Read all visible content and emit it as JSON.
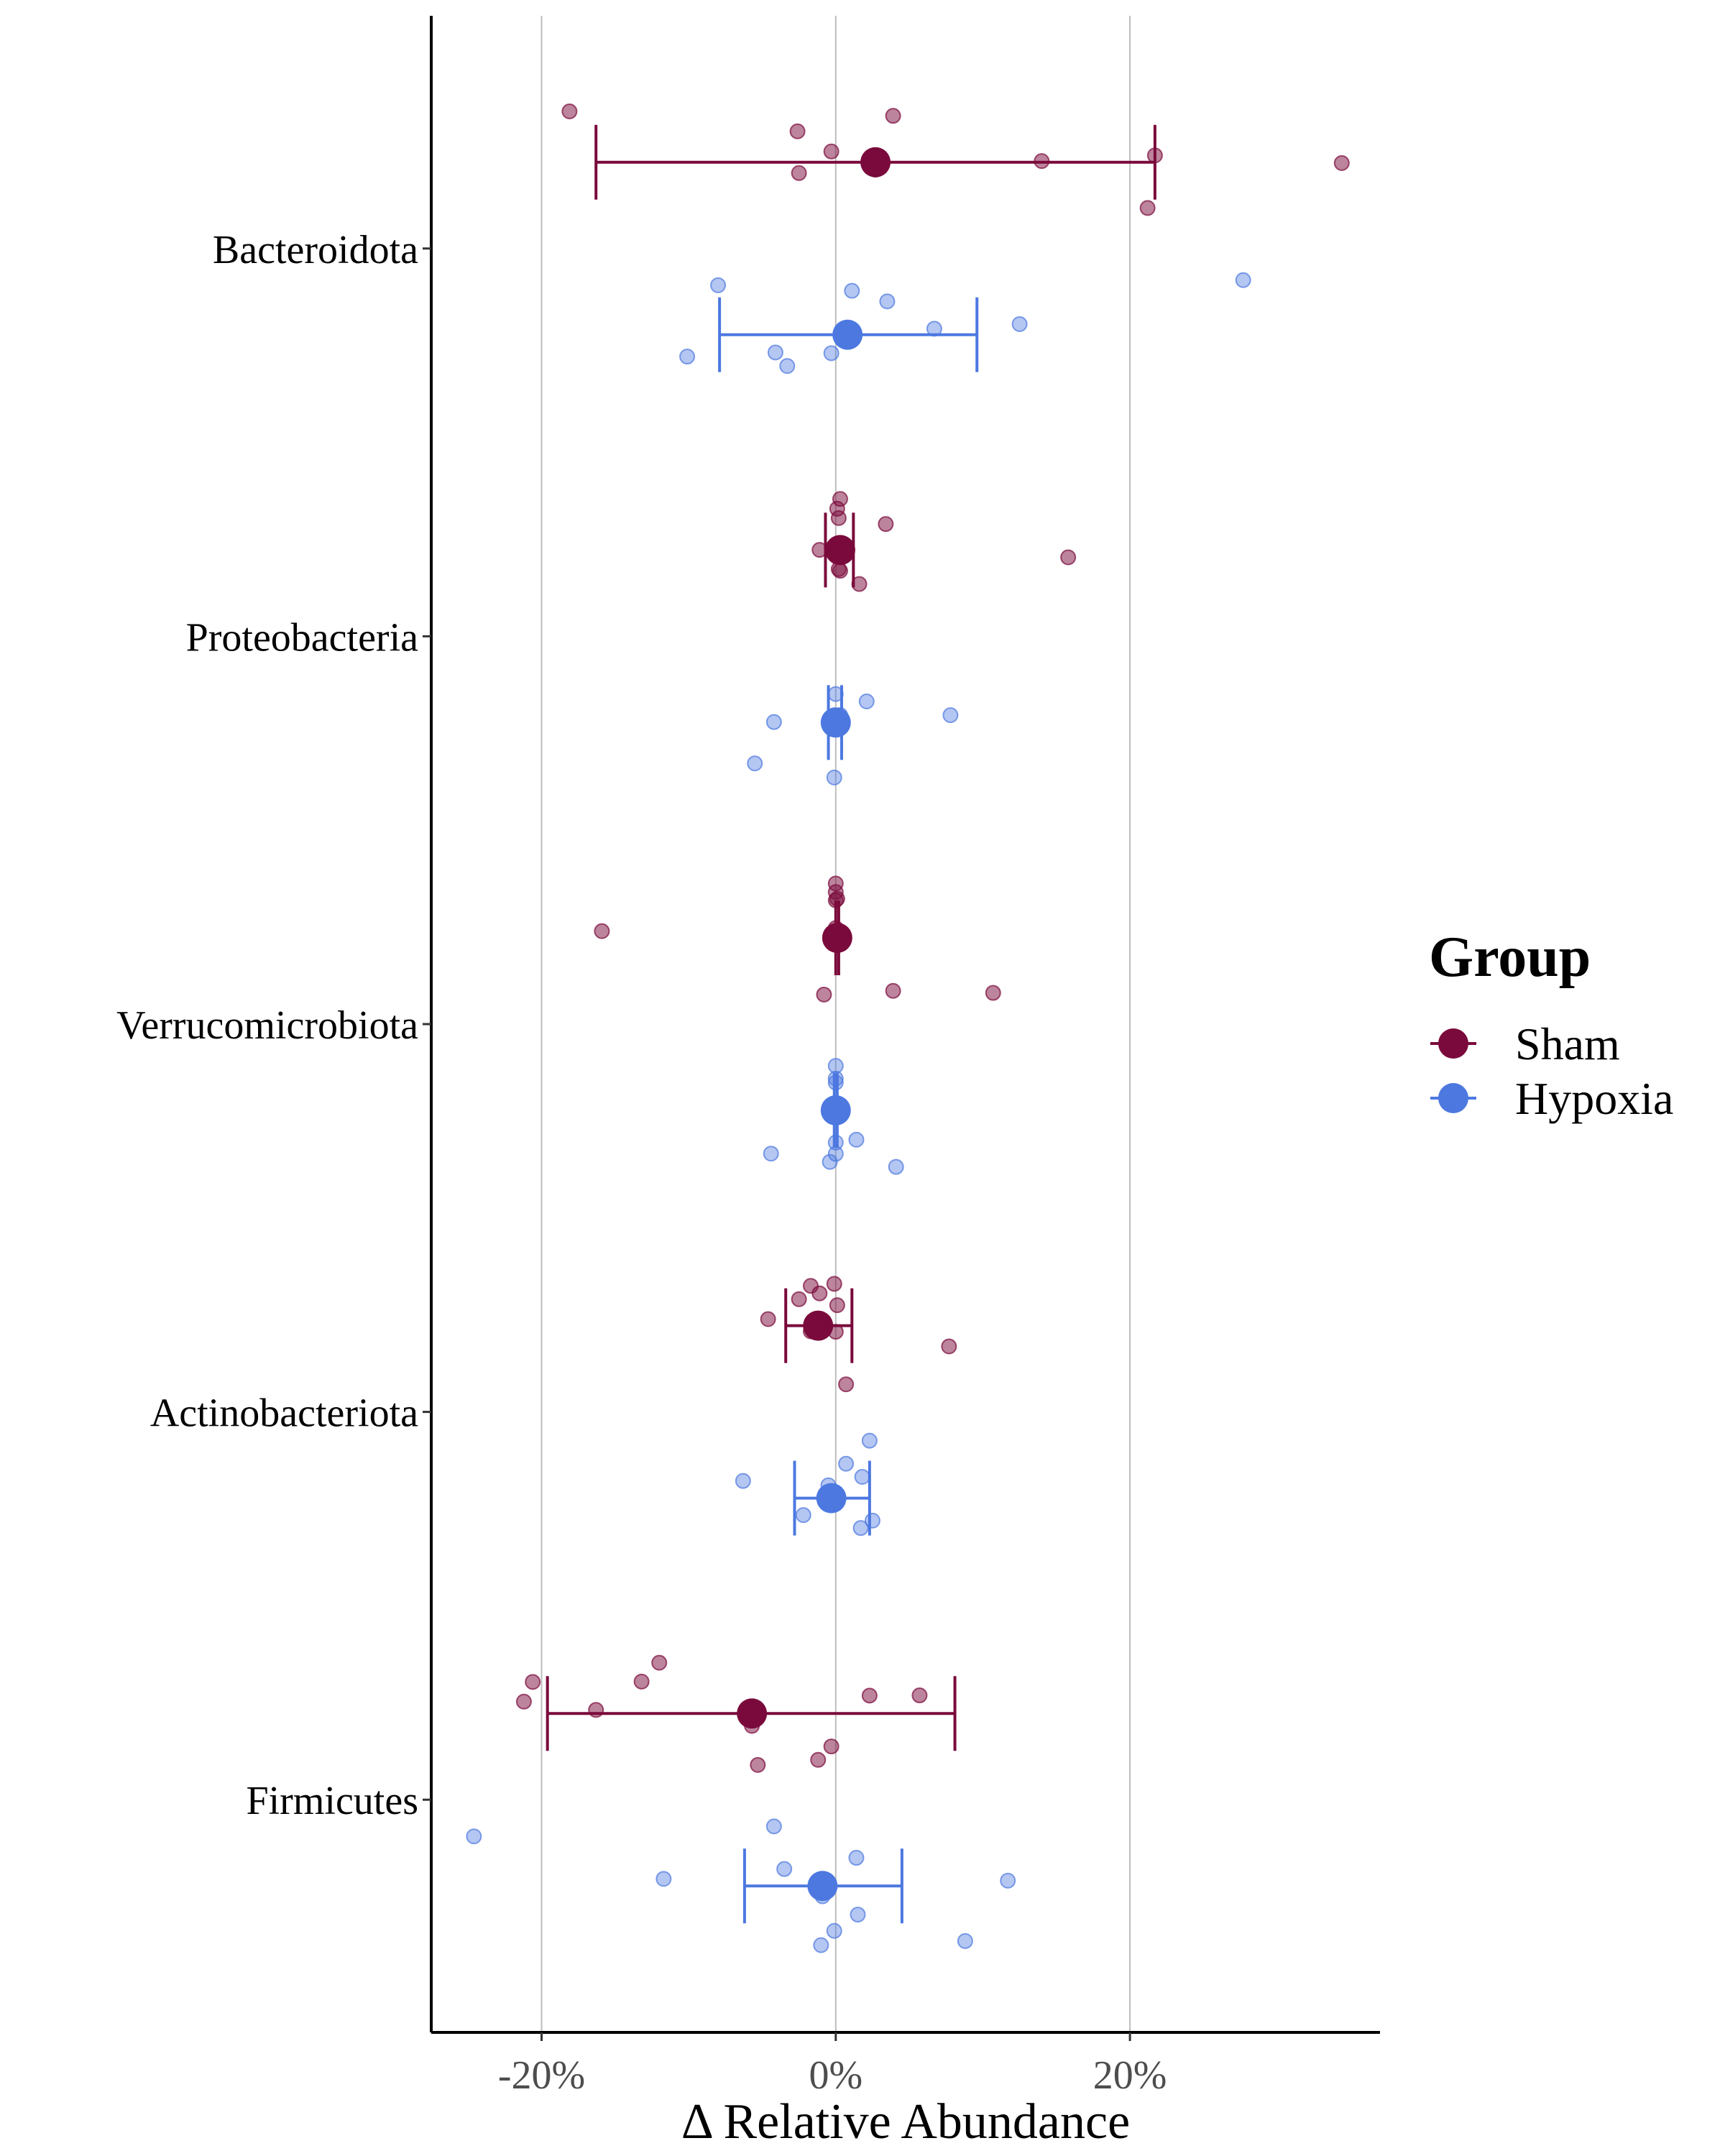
{
  "chart_data": {
    "type": "scatter",
    "subtype": "dot-and-whisker (mean ± SD) with jittered individual points",
    "x_axis": {
      "title": "Δ Relative Abundance",
      "range": [
        -27.5,
        37
      ],
      "ticks": [
        -20,
        0,
        20
      ],
      "tick_labels": [
        "-20%",
        "0%",
        "20%"
      ],
      "vertical_gridlines": true
    },
    "categories": [
      "Bacteroidota",
      "Proteobacteria",
      "Verrucomicrobiota",
      "Actinobacteriota",
      "Firmicutes"
    ],
    "legend": {
      "title": "Group",
      "position": "right",
      "entries": [
        "Sham",
        "Hypoxia"
      ]
    },
    "series": [
      {
        "name": "Sham",
        "color": "#7a0a3b",
        "summary": [
          {
            "category": "Bacteroidota",
            "mean": 2.7,
            "lower": -16.3,
            "upper": 21.7
          },
          {
            "category": "Proteobacteria",
            "mean": 0.3,
            "lower": -0.7,
            "upper": 1.2
          },
          {
            "category": "Verrucomicrobiota",
            "mean": 0.1,
            "lower": 0.0,
            "upper": 0.2
          },
          {
            "category": "Actinobacteriota",
            "mean": -1.2,
            "lower": -3.4,
            "upper": 1.1
          },
          {
            "category": "Firmicutes",
            "mean": -5.7,
            "lower": -19.6,
            "upper": 8.1
          }
        ],
        "points": [
          {
            "category": "Bacteroidota",
            "x": [
              14.0,
              2.7,
              3.9,
              -2.6,
              21.7,
              34.4,
              -18.1,
              21.2,
              -2.5,
              -0.3
            ]
          },
          {
            "category": "Proteobacteria",
            "x": [
              3.4,
              1.6,
              0.2,
              0.3,
              -1.1,
              0.2,
              0.3,
              0.1,
              15.8
            ]
          },
          {
            "category": "Verrucomicrobiota",
            "x": [
              0.0,
              0.1,
              0.0,
              3.9,
              -0.8,
              0.0,
              -15.9,
              10.7,
              0.0,
              0.0
            ]
          },
          {
            "category": "Actinobacteriota",
            "x": [
              0.0,
              7.7,
              -2.5,
              -1.7,
              0.7,
              -4.6,
              -1.1,
              -1.7,
              0.1,
              -0.1
            ]
          },
          {
            "category": "Firmicutes",
            "x": [
              -0.3,
              2.3,
              5.7,
              -12.0,
              -5.3,
              -20.6,
              -1.2,
              -16.3,
              -13.2,
              -5.7,
              -21.2
            ]
          }
        ]
      },
      {
        "name": "Hypoxia",
        "color": "#4c78e0",
        "summary": [
          {
            "category": "Bacteroidota",
            "mean": 0.8,
            "lower": -7.9,
            "upper": 9.6
          },
          {
            "category": "Proteobacteria",
            "mean": 0.0,
            "lower": -0.5,
            "upper": 0.4
          },
          {
            "category": "Verrucomicrobiota",
            "mean": 0.0,
            "lower": -0.1,
            "upper": 0.1
          },
          {
            "category": "Actinobacteriota",
            "mean": -0.3,
            "lower": -2.8,
            "upper": 2.3
          },
          {
            "category": "Firmicutes",
            "mean": -0.9,
            "lower": -6.2,
            "upper": 4.5
          }
        ],
        "points": [
          {
            "category": "Bacteroidota",
            "x": [
              -3.3,
              -0.3,
              1.1,
              3.5,
              6.7,
              -8.0,
              27.7,
              12.5,
              -10.1,
              -4.1
            ]
          },
          {
            "category": "Proteobacteria",
            "x": [
              -0.1,
              2.1,
              0.3,
              -4.2,
              7.8,
              -5.5,
              -0.2,
              -0.1,
              0.0
            ]
          },
          {
            "category": "Verrucomicrobiota",
            "x": [
              0.0,
              1.4,
              0.0,
              0.0,
              0.0,
              -4.4,
              4.1,
              -0.4,
              0.0
            ]
          },
          {
            "category": "Actinobacteriota",
            "x": [
              1.7,
              -2.2,
              -0.3,
              2.3,
              1.8,
              -6.3,
              0.7,
              -0.5,
              2.5
            ]
          },
          {
            "category": "Firmicutes",
            "x": [
              1.5,
              1.4,
              8.8,
              -4.2,
              -3.5,
              -0.9,
              -11.7,
              -24.6,
              -1.0,
              11.7,
              -0.1
            ]
          }
        ]
      }
    ]
  }
}
